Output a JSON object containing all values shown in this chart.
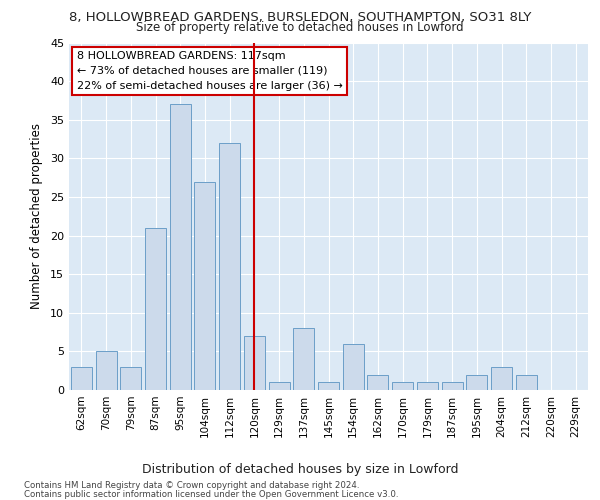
{
  "title1": "8, HOLLOWBREAD GARDENS, BURSLEDON, SOUTHAMPTON, SO31 8LY",
  "title2": "Size of property relative to detached houses in Lowford",
  "xlabel": "Distribution of detached houses by size in Lowford",
  "ylabel": "Number of detached properties",
  "categories": [
    "62sqm",
    "70sqm",
    "79sqm",
    "87sqm",
    "95sqm",
    "104sqm",
    "112sqm",
    "120sqm",
    "129sqm",
    "137sqm",
    "145sqm",
    "154sqm",
    "162sqm",
    "170sqm",
    "179sqm",
    "187sqm",
    "195sqm",
    "204sqm",
    "212sqm",
    "220sqm",
    "229sqm"
  ],
  "values": [
    3,
    5,
    3,
    21,
    37,
    27,
    32,
    7,
    1,
    8,
    1,
    6,
    2,
    1,
    1,
    1,
    2,
    3,
    2,
    0,
    0
  ],
  "bar_color": "#ccdaeb",
  "bar_edge_color": "#6b9ec8",
  "vline_pos": 7.5,
  "vline_color": "#cc0000",
  "annotation_text": "8 HOLLOWBREAD GARDENS: 117sqm\n← 73% of detached houses are smaller (119)\n22% of semi-detached houses are larger (36) →",
  "annotation_box_color": "white",
  "annotation_box_edge": "#cc0000",
  "ylim": [
    0,
    45
  ],
  "yticks": [
    0,
    5,
    10,
    15,
    20,
    25,
    30,
    35,
    40,
    45
  ],
  "footer1": "Contains HM Land Registry data © Crown copyright and database right 2024.",
  "footer2": "Contains public sector information licensed under the Open Government Licence v3.0.",
  "fig_bg_color": "#ffffff",
  "plot_bg_color": "#dce9f5"
}
